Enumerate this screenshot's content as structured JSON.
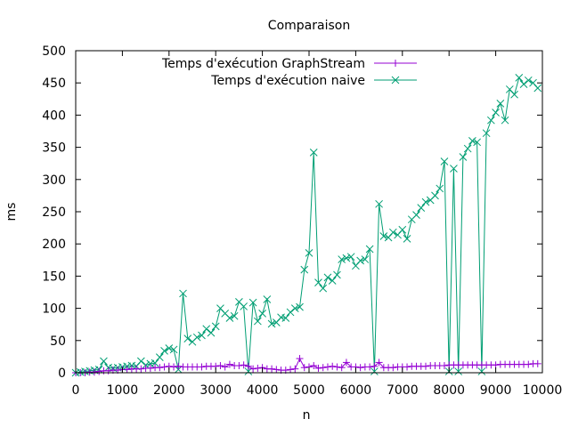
{
  "chart_data": {
    "type": "line",
    "title": "Comparaison",
    "xlabel": "n",
    "ylabel": "ms",
    "xlim": [
      0,
      10000
    ],
    "ylim": [
      0,
      500
    ],
    "xticks": [
      0,
      1000,
      2000,
      3000,
      4000,
      5000,
      6000,
      7000,
      8000,
      9000,
      10000
    ],
    "yticks": [
      0,
      50,
      100,
      150,
      200,
      250,
      300,
      350,
      400,
      450,
      500
    ],
    "grid": false,
    "legend_position": "top",
    "series": [
      {
        "name": "Temps d'exécution  GraphStream",
        "color": "#9400d3",
        "marker": "plus",
        "x": [
          0,
          100,
          200,
          300,
          400,
          500,
          600,
          700,
          800,
          900,
          1000,
          1100,
          1200,
          1300,
          1400,
          1500,
          1600,
          1700,
          1800,
          1900,
          2000,
          2100,
          2200,
          2300,
          2400,
          2500,
          2600,
          2700,
          2800,
          2900,
          3000,
          3100,
          3200,
          3300,
          3400,
          3500,
          3600,
          3700,
          3800,
          3900,
          4000,
          4100,
          4200,
          4300,
          4400,
          4500,
          4600,
          4700,
          4800,
          4900,
          5000,
          5100,
          5200,
          5300,
          5400,
          5500,
          5600,
          5700,
          5800,
          5900,
          6000,
          6100,
          6200,
          6300,
          6400,
          6500,
          6600,
          6700,
          6800,
          6900,
          7000,
          7100,
          7200,
          7300,
          7400,
          7500,
          7600,
          7700,
          7800,
          7900,
          8000,
          8100,
          8200,
          8300,
          8400,
          8500,
          8600,
          8700,
          8800,
          8900,
          9000,
          9100,
          9200,
          9300,
          9400,
          9500,
          9600,
          9700,
          9800,
          9900
        ],
        "y": [
          0,
          0,
          0,
          1,
          1,
          2,
          3,
          3,
          4,
          4,
          5,
          5,
          6,
          6,
          6,
          7,
          7,
          8,
          8,
          9,
          10,
          9,
          10,
          9,
          9,
          9,
          9,
          9,
          10,
          10,
          10,
          11,
          9,
          13,
          11,
          11,
          12,
          10,
          6,
          7,
          8,
          6,
          6,
          5,
          4,
          4,
          5,
          6,
          22,
          8,
          9,
          11,
          7,
          8,
          9,
          10,
          9,
          8,
          16,
          9,
          9,
          8,
          9,
          9,
          10,
          16,
          8,
          8,
          8,
          9,
          9,
          9,
          10,
          10,
          10,
          10,
          11,
          11,
          11,
          11,
          12,
          12,
          12,
          12,
          12,
          12,
          12,
          12,
          12,
          12,
          12,
          13,
          13,
          13,
          13,
          13,
          13,
          13,
          14,
          14
        ]
      },
      {
        "name": "Temps d'exécution  naive",
        "color": "#009e73",
        "marker": "cross",
        "x": [
          0,
          100,
          200,
          300,
          400,
          500,
          600,
          700,
          800,
          900,
          1000,
          1100,
          1200,
          1300,
          1400,
          1500,
          1600,
          1700,
          1800,
          1900,
          2000,
          2100,
          2200,
          2300,
          2400,
          2500,
          2600,
          2700,
          2800,
          2900,
          3000,
          3100,
          3200,
          3300,
          3400,
          3500,
          3600,
          3700,
          3800,
          3900,
          4000,
          4100,
          4200,
          4300,
          4400,
          4500,
          4600,
          4700,
          4800,
          4900,
          5000,
          5100,
          5200,
          5300,
          5400,
          5500,
          5600,
          5700,
          5800,
          5900,
          6000,
          6100,
          6200,
          6300,
          6400,
          6500,
          6600,
          6700,
          6800,
          6900,
          7000,
          7100,
          7200,
          7300,
          7400,
          7500,
          7600,
          7700,
          7800,
          7900,
          8000,
          8100,
          8200,
          8300,
          8400,
          8500,
          8600,
          8700,
          8800,
          8900,
          9000,
          9100,
          9200,
          9300,
          9400,
          9500,
          9600,
          9700,
          9800,
          9900
        ],
        "y": [
          0,
          1,
          2,
          3,
          4,
          5,
          18,
          8,
          7,
          8,
          9,
          10,
          11,
          10,
          18,
          12,
          14,
          15,
          24,
          34,
          38,
          36,
          5,
          123,
          53,
          48,
          55,
          58,
          68,
          62,
          72,
          100,
          92,
          85,
          88,
          110,
          103,
          2,
          109,
          80,
          92,
          114,
          76,
          78,
          86,
          85,
          94,
          100,
          102,
          160,
          186,
          342,
          140,
          131,
          148,
          143,
          152,
          176,
          178,
          180,
          166,
          174,
          176,
          192,
          2,
          262,
          212,
          210,
          218,
          214,
          222,
          208,
          238,
          245,
          256,
          265,
          268,
          275,
          286,
          328,
          2,
          317,
          2,
          335,
          348,
          360,
          358,
          2,
          372,
          392,
          404,
          418,
          392,
          440,
          432,
          458,
          448,
          454,
          450,
          442
        ]
      }
    ]
  }
}
